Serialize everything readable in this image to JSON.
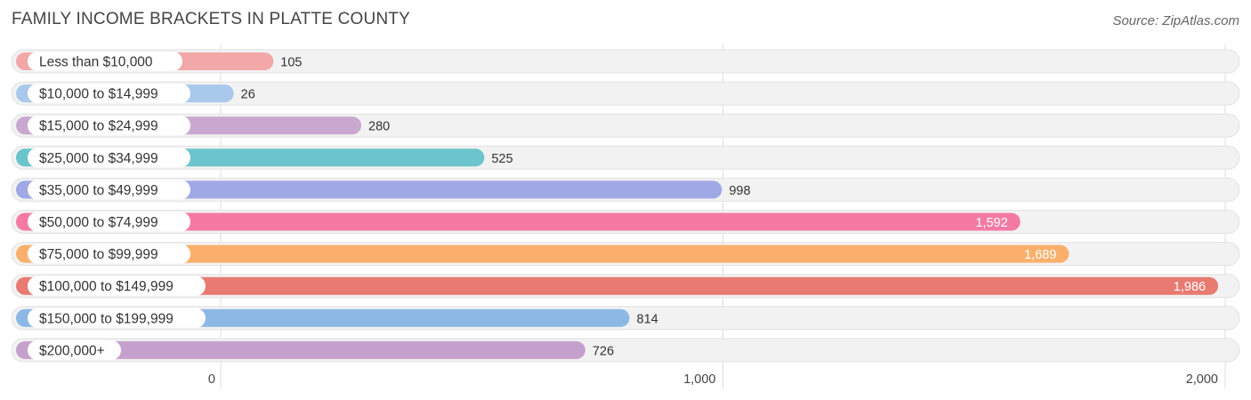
{
  "title": "FAMILY INCOME BRACKETS IN PLATTE COUNTY",
  "source": "Source: ZipAtlas.com",
  "chart_data": {
    "type": "bar",
    "orientation": "horizontal",
    "title": "FAMILY INCOME BRACKETS IN PLATTE COUNTY",
    "xlabel": "",
    "ylabel": "",
    "xlim": [
      0,
      2000
    ],
    "grid": true,
    "ticks": [
      {
        "value": 0,
        "label": "0"
      },
      {
        "value": 1000,
        "label": "1,000"
      },
      {
        "value": 2000,
        "label": "2,000"
      }
    ],
    "categories": [
      "Less than $10,000",
      "$10,000 to $14,999",
      "$15,000 to $24,999",
      "$25,000 to $34,999",
      "$35,000 to $49,999",
      "$50,000 to $74,999",
      "$75,000 to $99,999",
      "$100,000 to $149,999",
      "$150,000 to $199,999",
      "$200,000+"
    ],
    "values": [
      105,
      26,
      280,
      525,
      998,
      1592,
      1689,
      1986,
      814,
      726
    ],
    "value_labels": [
      "105",
      "26",
      "280",
      "525",
      "998",
      "1,592",
      "1,689",
      "1,986",
      "814",
      "726"
    ],
    "colors": [
      "#f2a8a8",
      "#a8c8ec",
      "#c9a8d0",
      "#6cc4cc",
      "#a0a8e6",
      "#f47aa4",
      "#fab06c",
      "#e87a72",
      "#8cb8e6",
      "#c6a0cc"
    ]
  }
}
